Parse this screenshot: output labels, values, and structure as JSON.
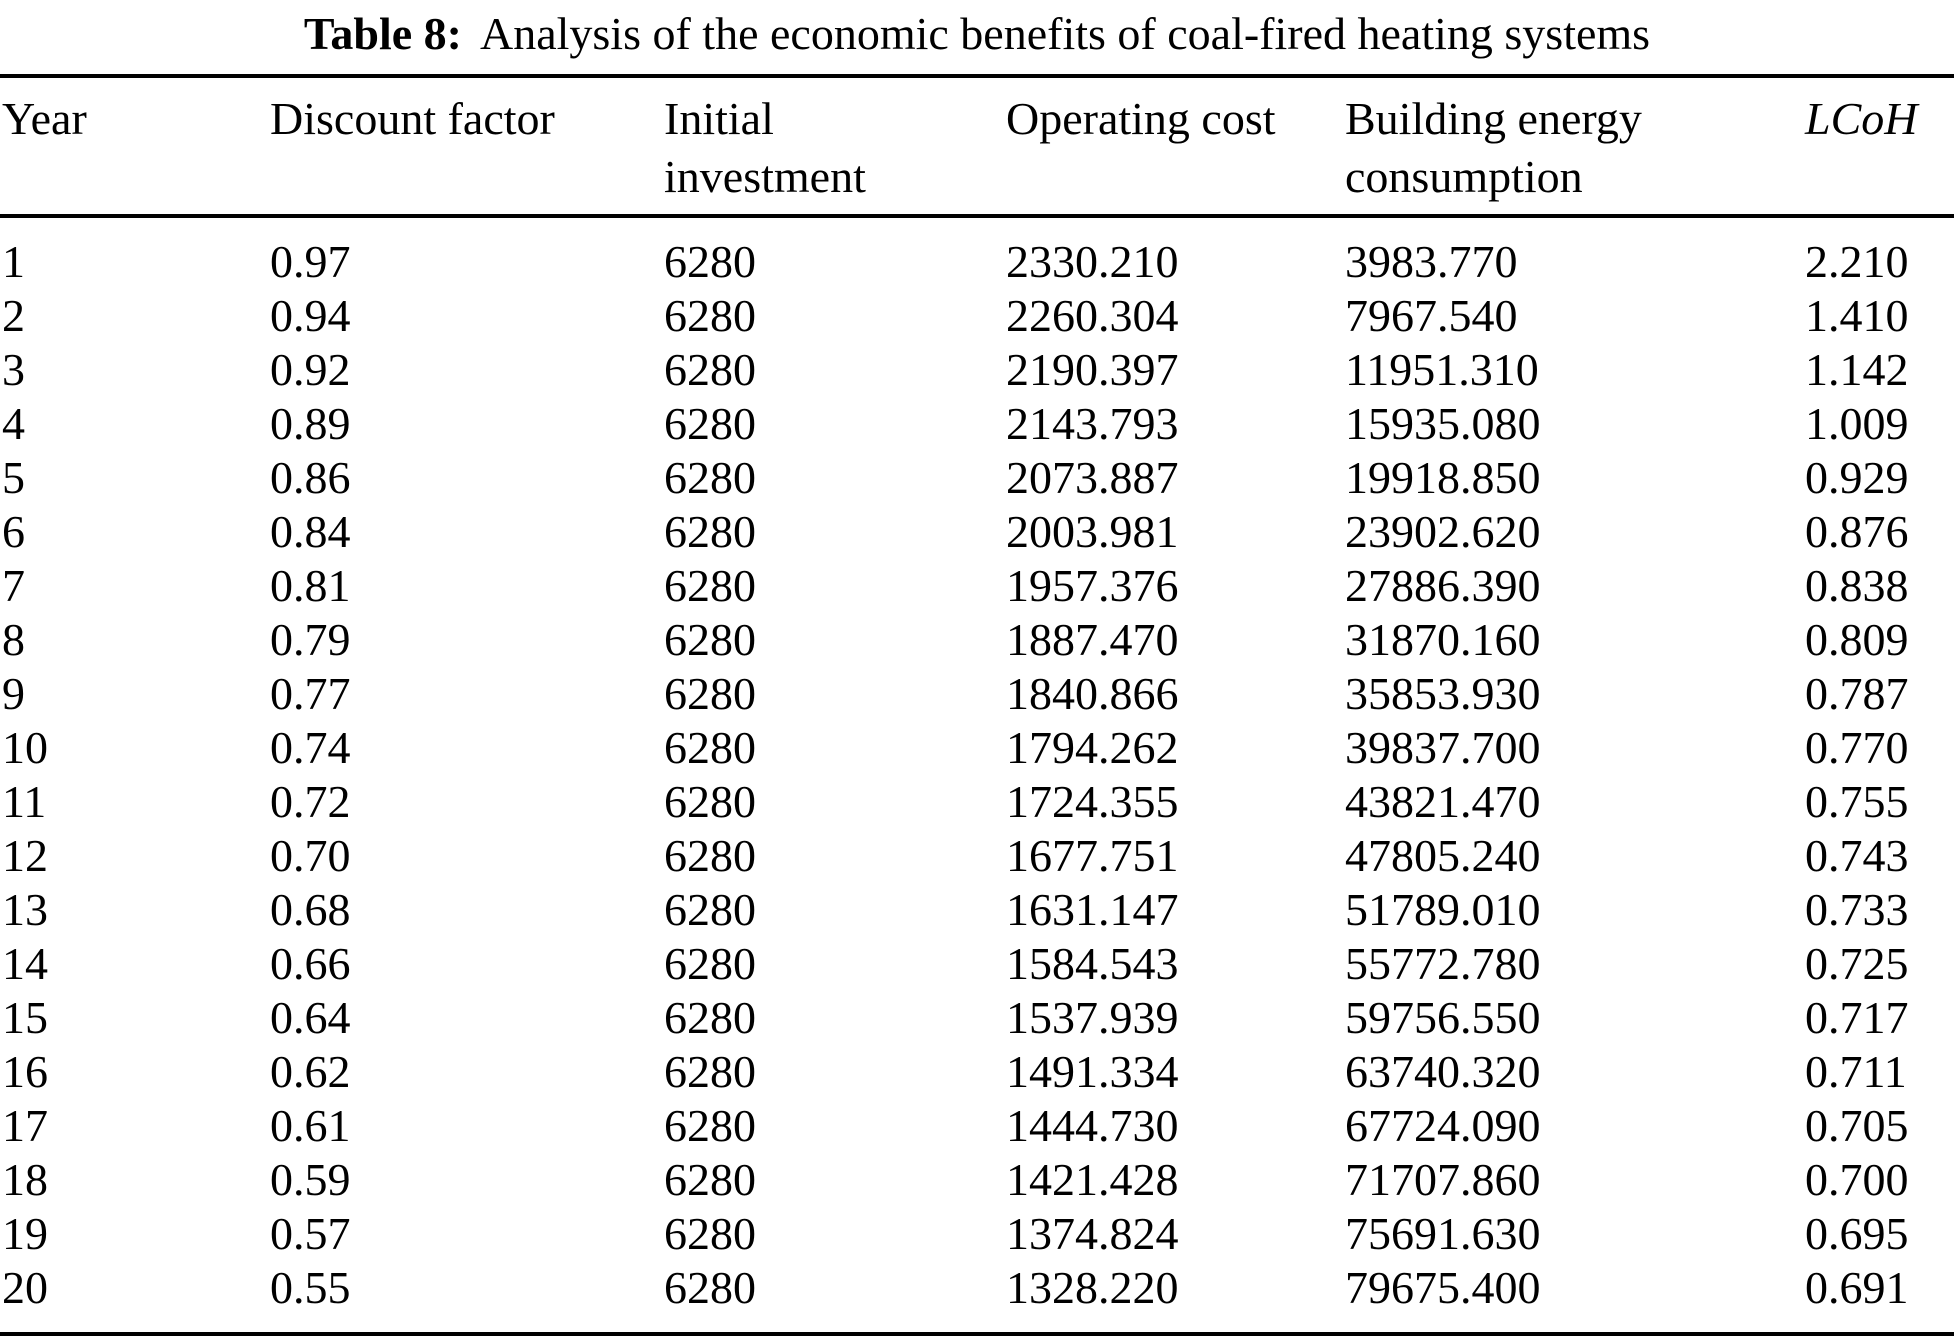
{
  "caption": {
    "label": "Table 8:",
    "text": "Analysis of the economic benefits of coal-fired heating systems"
  },
  "colors": {
    "text": "#000000",
    "background": "#ffffff",
    "rule": "#000000"
  },
  "table": {
    "columns": [
      {
        "line1": "Year",
        "line2": ""
      },
      {
        "line1": "Discount factor",
        "line2": ""
      },
      {
        "line1": "Initial",
        "line2": "investment"
      },
      {
        "line1": "Operating cost",
        "line2": ""
      },
      {
        "line1": "Building energy",
        "line2": "consumption"
      },
      {
        "line1": "LCoH",
        "line2": ""
      }
    ],
    "rows": [
      [
        "1",
        "0.97",
        "6280",
        "2330.210",
        "3983.770",
        "2.210"
      ],
      [
        "2",
        "0.94",
        "6280",
        "2260.304",
        "7967.540",
        "1.410"
      ],
      [
        "3",
        "0.92",
        "6280",
        "2190.397",
        "11951.310",
        "1.142"
      ],
      [
        "4",
        "0.89",
        "6280",
        "2143.793",
        "15935.080",
        "1.009"
      ],
      [
        "5",
        "0.86",
        "6280",
        "2073.887",
        "19918.850",
        "0.929"
      ],
      [
        "6",
        "0.84",
        "6280",
        "2003.981",
        "23902.620",
        "0.876"
      ],
      [
        "7",
        "0.81",
        "6280",
        "1957.376",
        "27886.390",
        "0.838"
      ],
      [
        "8",
        "0.79",
        "6280",
        "1887.470",
        "31870.160",
        "0.809"
      ],
      [
        "9",
        "0.77",
        "6280",
        "1840.866",
        "35853.930",
        "0.787"
      ],
      [
        "10",
        "0.74",
        "6280",
        "1794.262",
        "39837.700",
        "0.770"
      ],
      [
        "11",
        "0.72",
        "6280",
        "1724.355",
        "43821.470",
        "0.755"
      ],
      [
        "12",
        "0.70",
        "6280",
        "1677.751",
        "47805.240",
        "0.743"
      ],
      [
        "13",
        "0.68",
        "6280",
        "1631.147",
        "51789.010",
        "0.733"
      ],
      [
        "14",
        "0.66",
        "6280",
        "1584.543",
        "55772.780",
        "0.725"
      ],
      [
        "15",
        "0.64",
        "6280",
        "1537.939",
        "59756.550",
        "0.717"
      ],
      [
        "16",
        "0.62",
        "6280",
        "1491.334",
        "63740.320",
        "0.711"
      ],
      [
        "17",
        "0.61",
        "6280",
        "1444.730",
        "67724.090",
        "0.705"
      ],
      [
        "18",
        "0.59",
        "6280",
        "1421.428",
        "71707.860",
        "0.700"
      ],
      [
        "19",
        "0.57",
        "6280",
        "1374.824",
        "75691.630",
        "0.695"
      ],
      [
        "20",
        "0.55",
        "6280",
        "1328.220",
        "79675.400",
        "0.691"
      ]
    ]
  }
}
